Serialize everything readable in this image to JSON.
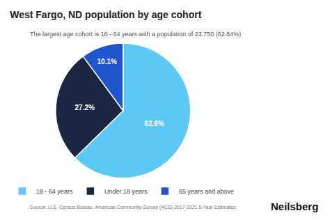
{
  "chart_data": {
    "type": "pie",
    "title": "West Fargo, ND population by age cohort",
    "subtitle": "The largest age cohort is 18 - 64 years with a population of 23,750 (62.64%)",
    "categories": [
      "18 - 64 years",
      "Under 18 years",
      "65 years and above"
    ],
    "values": [
      62.64,
      27.2,
      10.1
    ],
    "value_labels": [
      "62.6%",
      "27.2%",
      "10.1%"
    ],
    "colors": [
      "#5BC8F5",
      "#1A2744",
      "#2155CD"
    ],
    "data_labels": true,
    "legend": "bottom",
    "annotations": [
      "Source: U.S. Census Bureau, American Community Survey (ACS) 2017-2021 5-Year Estimates",
      "Neilsberg"
    ]
  }
}
